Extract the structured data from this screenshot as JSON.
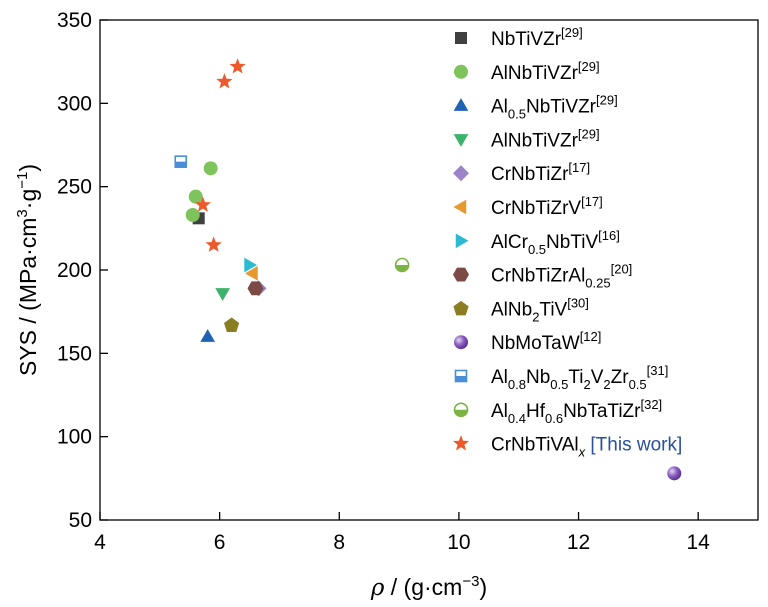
{
  "chart_data": {
    "type": "scatter",
    "xlabel": "ρ / (g·cm⁻³)",
    "xlabel_parts": {
      "symbol": "ρ",
      "text": " / (g·cm",
      "sup": "−3",
      "close": ")"
    },
    "ylabel": "SYS / (MPa·cm³·g⁻¹)",
    "ylabel_parts": {
      "pre": "SYS / (MPa·cm",
      "sup1": "3",
      "mid": "·g",
      "sup2": "−1",
      "close": ")"
    },
    "xlim": [
      4,
      15
    ],
    "ylim": [
      50,
      350
    ],
    "xticks": [
      4,
      6,
      8,
      10,
      12,
      14
    ],
    "yticks": [
      50,
      100,
      150,
      200,
      250,
      300,
      350
    ],
    "legend_position": "upper-right inside",
    "series": [
      {
        "name": "NbTiVZr[29]",
        "label_parts": [
          {
            "t": "NbTiVZr"
          },
          {
            "t": "[29]",
            "s": "sup"
          }
        ],
        "marker": "square",
        "color": "#404040",
        "points": [
          {
            "x": 5.65,
            "y": 231
          }
        ]
      },
      {
        "name": "AlNbTiVZr[29]",
        "label_parts": [
          {
            "t": "AlNbTiVZr"
          },
          {
            "t": "[29]",
            "s": "sup"
          }
        ],
        "marker": "circle",
        "color": "#7ec35b",
        "points": [
          {
            "x": 5.55,
            "y": 233
          },
          {
            "x": 5.6,
            "y": 244
          },
          {
            "x": 5.85,
            "y": 261
          }
        ]
      },
      {
        "name": "Al0.5NbTiVZr[29]",
        "label_parts": [
          {
            "t": "Al"
          },
          {
            "t": "0.5",
            "s": "sub"
          },
          {
            "t": "NbTiVZr"
          },
          {
            "t": "[29]",
            "s": "sup"
          }
        ],
        "marker": "triangle-up",
        "color": "#1f63b4",
        "points": [
          {
            "x": 5.8,
            "y": 160
          }
        ]
      },
      {
        "name": "AlNbTiVZr[29]",
        "label_parts": [
          {
            "t": "AlNbTiVZr"
          },
          {
            "t": "[29]",
            "s": "sup"
          }
        ],
        "marker": "triangle-down",
        "color": "#3bb36a",
        "points": [
          {
            "x": 6.05,
            "y": 186
          }
        ]
      },
      {
        "name": "CrNbTiZr[17]",
        "label_parts": [
          {
            "t": "CrNbTiZr"
          },
          {
            "t": "[17]",
            "s": "sup"
          }
        ],
        "marker": "diamond",
        "color": "#9b84c7",
        "points": [
          {
            "x": 6.65,
            "y": 189
          }
        ]
      },
      {
        "name": "CrNbTiZrV[17]",
        "label_parts": [
          {
            "t": "CrNbTiZrV"
          },
          {
            "t": "[17]",
            "s": "sup"
          }
        ],
        "marker": "triangle-left",
        "color": "#e69a2e",
        "points": [
          {
            "x": 6.55,
            "y": 198
          }
        ]
      },
      {
        "name": "AlCr0.5NbTiV[16]",
        "label_parts": [
          {
            "t": "AlCr"
          },
          {
            "t": "0.5",
            "s": "sub"
          },
          {
            "t": "NbTiV"
          },
          {
            "t": "[16]",
            "s": "sup"
          }
        ],
        "marker": "triangle-right",
        "color": "#2bbad2",
        "points": [
          {
            "x": 6.5,
            "y": 203
          }
        ]
      },
      {
        "name": "CrNbTiZrAl0.25[20]",
        "label_parts": [
          {
            "t": "CrNbTiZrAl"
          },
          {
            "t": "0.25",
            "s": "sub"
          },
          {
            "t": "[20]",
            "s": "sup"
          }
        ],
        "marker": "hexagon",
        "color": "#7b4a45",
        "points": [
          {
            "x": 6.6,
            "y": 189
          }
        ]
      },
      {
        "name": "AlNb2TiV[30]",
        "label_parts": [
          {
            "t": "AlNb"
          },
          {
            "t": "2",
            "s": "sub"
          },
          {
            "t": "TiV"
          },
          {
            "t": "[30]",
            "s": "sup"
          }
        ],
        "marker": "pentagon",
        "color": "#8b7d22",
        "points": [
          {
            "x": 6.2,
            "y": 167
          }
        ]
      },
      {
        "name": "NbMoTaW[12]",
        "label_parts": [
          {
            "t": "NbMoTaW"
          },
          {
            "t": "[12]",
            "s": "sup"
          }
        ],
        "marker": "sphere",
        "color": "#8a5cc0",
        "points": [
          {
            "x": 13.6,
            "y": 78
          }
        ]
      },
      {
        "name": "Al0.8Nb0.5Ti2V2Zr0.5[31]",
        "label_parts": [
          {
            "t": "Al"
          },
          {
            "t": "0.8",
            "s": "sub"
          },
          {
            "t": "Nb"
          },
          {
            "t": "0.5",
            "s": "sub"
          },
          {
            "t": "Ti"
          },
          {
            "t": "2",
            "s": "sub"
          },
          {
            "t": "V"
          },
          {
            "t": "2",
            "s": "sub"
          },
          {
            "t": "Zr"
          },
          {
            "t": "0.5",
            "s": "sub"
          },
          {
            "t": "[31]",
            "s": "sup"
          }
        ],
        "marker": "half-square",
        "color": "#4a8fd6",
        "points": [
          {
            "x": 5.35,
            "y": 265
          }
        ]
      },
      {
        "name": "Al0.4Hf0.6NbTaTiZr[32]",
        "label_parts": [
          {
            "t": "Al"
          },
          {
            "t": "0.4",
            "s": "sub"
          },
          {
            "t": "Hf"
          },
          {
            "t": "0.6",
            "s": "sub"
          },
          {
            "t": "NbTaTiZr"
          },
          {
            "t": "[32]",
            "s": "sup"
          }
        ],
        "marker": "half-circle",
        "color": "#7cb342",
        "points": [
          {
            "x": 9.05,
            "y": 203
          }
        ]
      },
      {
        "name": "CrNbTiVAlx [This work]",
        "label_parts": [
          {
            "t": "CrNbTiVAl"
          },
          {
            "t": "x",
            "s": "subi"
          },
          {
            "t": " [This work]",
            "s": "note"
          }
        ],
        "marker": "star",
        "color": "#ec5a2b",
        "points": [
          {
            "x": 5.72,
            "y": 239
          },
          {
            "x": 5.9,
            "y": 215
          },
          {
            "x": 6.08,
            "y": 313
          },
          {
            "x": 6.3,
            "y": 322
          }
        ]
      }
    ]
  }
}
